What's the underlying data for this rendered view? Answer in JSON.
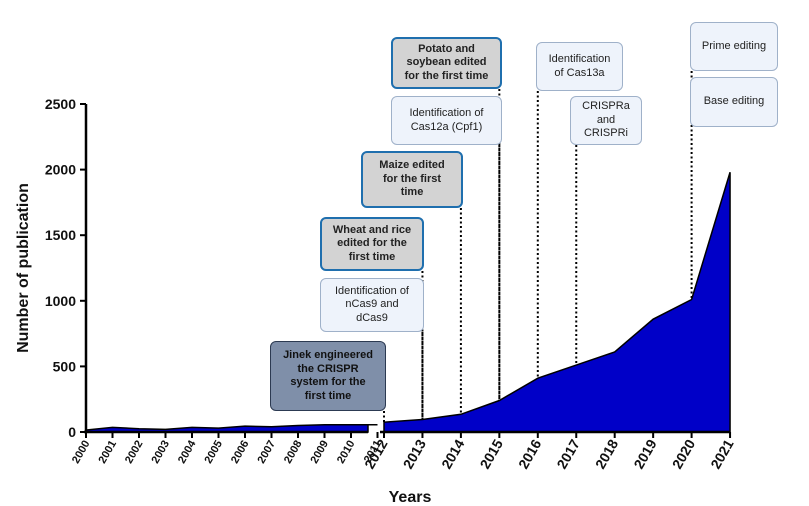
{
  "chart_data": {
    "type": "area",
    "x": [
      "2000",
      "2001",
      "2002",
      "2003",
      "2004",
      "2005",
      "2006",
      "2007",
      "2008",
      "2009",
      "2010",
      "2011",
      "2012",
      "2013",
      "2014",
      "2015",
      "2016",
      "2017",
      "2018",
      "2019",
      "2020",
      "2021"
    ],
    "values": [
      15,
      35,
      25,
      20,
      35,
      30,
      45,
      40,
      50,
      55,
      55,
      55,
      75,
      95,
      135,
      240,
      410,
      510,
      610,
      860,
      1010,
      1980
    ],
    "xlabel": "Years",
    "ylabel": "Number of publication",
    "ylim": [
      0,
      2500
    ],
    "yticks": [
      "0",
      "500",
      "1000",
      "1500",
      "2000",
      "2500"
    ],
    "axis_break": "between 2011 and 2012",
    "fill_color": "#0000c8",
    "grid": false
  },
  "annotations": [
    {
      "year": "2011",
      "text": "Jinek engineered\nthe CRISPR\nsystem for the\nfirst time",
      "style": "dark"
    },
    {
      "year": "2013",
      "text": "Identification of\nnCas9 and\ndCas9",
      "style": "light"
    },
    {
      "year": "2013",
      "text": "Wheat and rice\nedited for the\nfirst time",
      "style": "gray"
    },
    {
      "year": "2014",
      "text": "Maize edited\nfor the first\ntime",
      "style": "gray"
    },
    {
      "year": "2015",
      "text": "Identification of\nCas12a (Cpf1)",
      "style": "light"
    },
    {
      "year": "2015",
      "text": "Potato and\nsoybean edited\nfor the first time",
      "style": "gray"
    },
    {
      "year": "2016",
      "text": "Identification\nof Cas13a",
      "style": "light"
    },
    {
      "year": "2017",
      "text": "CRISPRa\nand\nCRISPRi",
      "style": "light"
    },
    {
      "year": "2020",
      "text": "Base editing",
      "style": "light"
    },
    {
      "year": "2020",
      "text": "Prime editing",
      "style": "light"
    }
  ]
}
